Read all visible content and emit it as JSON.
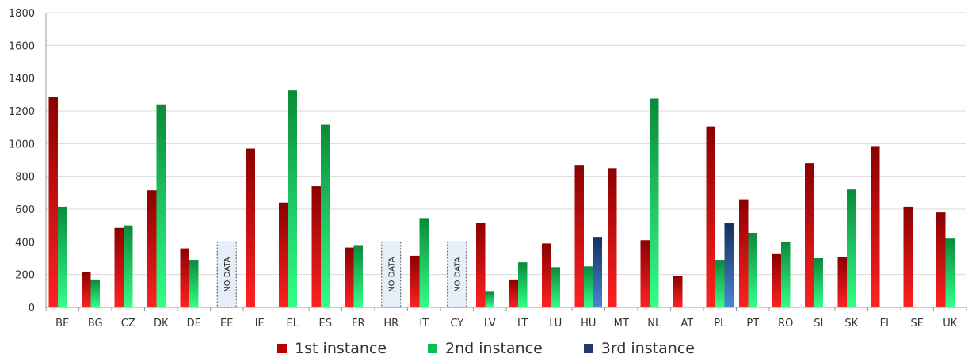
{
  "chart_data": {
    "type": "bar",
    "title": "",
    "xlabel": "",
    "ylabel": "",
    "ylim": [
      0,
      1800
    ],
    "yticks": [
      0,
      200,
      400,
      600,
      800,
      1000,
      1200,
      1400,
      1600,
      1800
    ],
    "grid": true,
    "legend_position": "bottom",
    "categories": [
      "BE",
      "BG",
      "CZ",
      "DK",
      "DE",
      "EE",
      "IE",
      "EL",
      "ES",
      "FR",
      "HR",
      "IT",
      "CY",
      "LV",
      "LT",
      "LU",
      "HU",
      "MT",
      "NL",
      "AT",
      "PL",
      "PT",
      "RO",
      "SI",
      "SK",
      "FI",
      "SE",
      "UK"
    ],
    "series": [
      {
        "name": "1st instance",
        "color": "#c00000",
        "values": [
          1285,
          215,
          485,
          715,
          360,
          null,
          970,
          640,
          740,
          365,
          null,
          315,
          null,
          515,
          170,
          390,
          870,
          850,
          410,
          190,
          1105,
          660,
          325,
          880,
          305,
          985,
          615,
          580
        ]
      },
      {
        "name": "2nd instance",
        "color": "#00c050",
        "values": [
          615,
          170,
          500,
          1240,
          290,
          null,
          null,
          1325,
          1115,
          380,
          null,
          545,
          null,
          95,
          275,
          245,
          250,
          null,
          1275,
          null,
          290,
          455,
          400,
          300,
          720,
          null,
          null,
          420
        ]
      },
      {
        "name": "3rd instance",
        "color": "#1f3a6b",
        "values": [
          null,
          null,
          null,
          null,
          null,
          null,
          null,
          null,
          null,
          null,
          null,
          null,
          null,
          null,
          null,
          null,
          430,
          null,
          null,
          null,
          515,
          null,
          null,
          null,
          null,
          null,
          null,
          null
        ]
      }
    ],
    "no_data_categories": [
      "EE",
      "HR",
      "CY"
    ],
    "no_data_label": "NO DATA"
  },
  "legend": {
    "items": [
      {
        "label": "1st instance",
        "color": "#c00000"
      },
      {
        "label": "2nd instance",
        "color": "#00c050"
      },
      {
        "label": "3rd instance",
        "color": "#1f3a6b"
      }
    ]
  }
}
